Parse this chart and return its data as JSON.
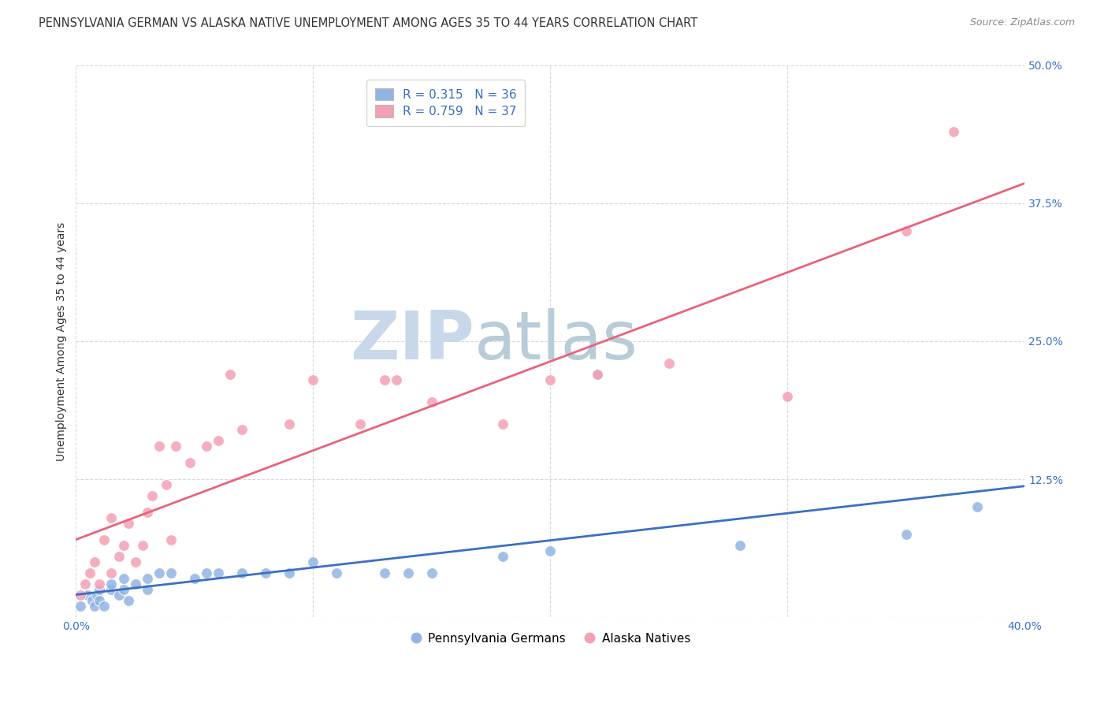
{
  "title": "PENNSYLVANIA GERMAN VS ALASKA NATIVE UNEMPLOYMENT AMONG AGES 35 TO 44 YEARS CORRELATION CHART",
  "source": "Source: ZipAtlas.com",
  "ylabel": "Unemployment Among Ages 35 to 44 years",
  "xlim": [
    0.0,
    0.4
  ],
  "ylim": [
    0.0,
    0.5
  ],
  "xticks": [
    0.0,
    0.1,
    0.2,
    0.3,
    0.4
  ],
  "yticks": [
    0.0,
    0.125,
    0.25,
    0.375,
    0.5
  ],
  "xticklabels": [
    "0.0%",
    "",
    "",
    "",
    "40.0%"
  ],
  "yticklabels": [
    "",
    "12.5%",
    "25.0%",
    "37.5%",
    "50.0%"
  ],
  "legend_r1": "R = ",
  "legend_r1_val": "0.315",
  "legend_n1": "  N = ",
  "legend_n1_val": "36",
  "legend_r2": "R = ",
  "legend_r2_val": "0.759",
  "legend_n2": "  N = ",
  "legend_n2_val": "37",
  "pa_color": "#92b4e3",
  "ak_color": "#f4a0b5",
  "pa_line_color": "#3a6fc4",
  "ak_line_color": "#e8637a",
  "watermark_zip": "ZIP",
  "watermark_atlas": "atlas",
  "watermark_color": "#c8d8ea",
  "background_color": "#ffffff",
  "grid_color": "#d8d8d8",
  "pa_x": [
    0.002,
    0.005,
    0.007,
    0.008,
    0.009,
    0.01,
    0.01,
    0.012,
    0.015,
    0.015,
    0.018,
    0.02,
    0.02,
    0.022,
    0.025,
    0.03,
    0.03,
    0.035,
    0.04,
    0.05,
    0.055,
    0.06,
    0.07,
    0.08,
    0.09,
    0.1,
    0.11,
    0.13,
    0.14,
    0.15,
    0.18,
    0.2,
    0.22,
    0.28,
    0.35,
    0.38
  ],
  "pa_y": [
    0.01,
    0.02,
    0.015,
    0.01,
    0.02,
    0.015,
    0.025,
    0.01,
    0.025,
    0.03,
    0.02,
    0.025,
    0.035,
    0.015,
    0.03,
    0.025,
    0.035,
    0.04,
    0.04,
    0.035,
    0.04,
    0.04,
    0.04,
    0.04,
    0.04,
    0.05,
    0.04,
    0.04,
    0.04,
    0.04,
    0.055,
    0.06,
    0.22,
    0.065,
    0.075,
    0.1
  ],
  "ak_x": [
    0.002,
    0.004,
    0.006,
    0.008,
    0.01,
    0.012,
    0.015,
    0.015,
    0.018,
    0.02,
    0.022,
    0.025,
    0.028,
    0.03,
    0.032,
    0.035,
    0.038,
    0.04,
    0.042,
    0.048,
    0.055,
    0.06,
    0.065,
    0.07,
    0.09,
    0.1,
    0.12,
    0.13,
    0.135,
    0.15,
    0.18,
    0.2,
    0.22,
    0.25,
    0.3,
    0.35,
    0.37
  ],
  "ak_y": [
    0.02,
    0.03,
    0.04,
    0.05,
    0.03,
    0.07,
    0.04,
    0.09,
    0.055,
    0.065,
    0.085,
    0.05,
    0.065,
    0.095,
    0.11,
    0.155,
    0.12,
    0.07,
    0.155,
    0.14,
    0.155,
    0.16,
    0.22,
    0.17,
    0.175,
    0.215,
    0.175,
    0.215,
    0.215,
    0.195,
    0.175,
    0.215,
    0.22,
    0.23,
    0.2,
    0.35,
    0.44
  ],
  "title_fontsize": 10.5,
  "axis_label_fontsize": 10,
  "tick_fontsize": 10,
  "legend_fontsize": 11,
  "source_fontsize": 9
}
